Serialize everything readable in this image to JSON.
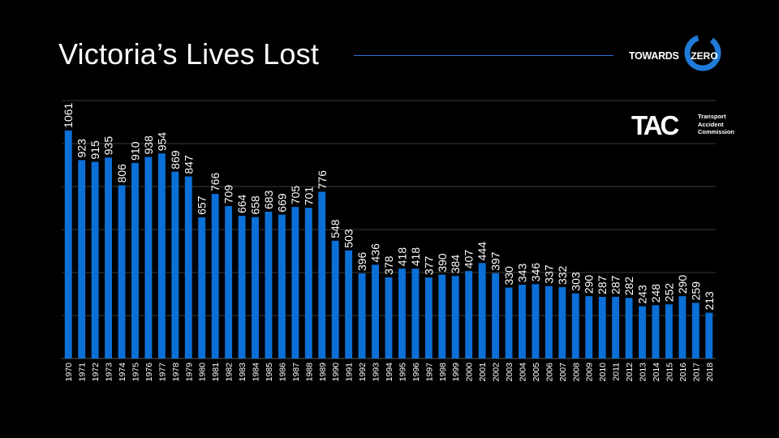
{
  "title": "Victoria’s Lives Lost",
  "logos": {
    "towards_zero": {
      "left": "TOWARDS",
      "right": "ZERO"
    },
    "tac": {
      "mark": "TAC",
      "subtitle": [
        "Transport",
        "Accident",
        "Commission"
      ]
    }
  },
  "colors": {
    "background": "#000000",
    "bar": "#0b6fd6",
    "grid": "#3a3a3a",
    "rule": "#2c6fd6",
    "text": "#ffffff"
  },
  "chart_data": {
    "type": "bar",
    "title": "Victoria’s Lives Lost",
    "xlabel": "",
    "ylabel": "",
    "ylim": [
      0,
      1200
    ],
    "grid": true,
    "categories": [
      "1970",
      "1971",
      "1972",
      "1973",
      "1974",
      "1975",
      "1976",
      "1977",
      "1978",
      "1979",
      "1980",
      "1981",
      "1982",
      "1983",
      "1984",
      "1985",
      "1986",
      "1987",
      "1988",
      "1989",
      "1990",
      "1991",
      "1992",
      "1993",
      "1994",
      "1995",
      "1996",
      "1997",
      "1998",
      "1999",
      "2000",
      "2001",
      "2002",
      "2003",
      "2004",
      "2005",
      "2006",
      "2007",
      "2008",
      "2009",
      "2010",
      "2011",
      "2012",
      "2013",
      "2014",
      "2015",
      "2016",
      "2017",
      "2018"
    ],
    "values": [
      1061,
      923,
      915,
      935,
      806,
      910,
      938,
      954,
      869,
      847,
      657,
      766,
      709,
      664,
      658,
      683,
      669,
      705,
      701,
      776,
      548,
      503,
      396,
      436,
      378,
      418,
      418,
      377,
      390,
      384,
      407,
      444,
      397,
      330,
      343,
      346,
      337,
      332,
      303,
      290,
      287,
      287,
      282,
      243,
      248,
      252,
      290,
      259,
      213
    ],
    "labels": [
      "1061",
      "923",
      "915",
      "935",
      "806",
      "910",
      "938",
      "954",
      "869",
      "847",
      "657",
      "766",
      "709",
      "664",
      "658",
      "683",
      "669",
      "705",
      "701",
      "776",
      "548",
      "503",
      "396",
      "436",
      "378",
      "418",
      "418",
      "377",
      "390",
      "384",
      "407",
      "444",
      "397",
      "330",
      "343",
      "346",
      "337",
      "332",
      "303",
      "290",
      "287",
      "287",
      "282",
      "243",
      "248",
      "252",
      "290",
      "259",
      "213"
    ]
  }
}
